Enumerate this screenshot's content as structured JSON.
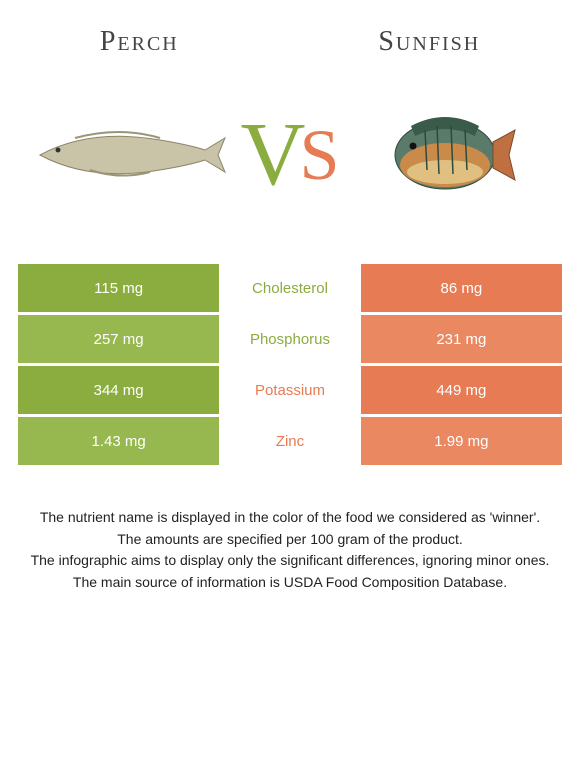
{
  "colors": {
    "left": "#8bad3f",
    "right": "#e77b53",
    "left_alt": "#97b74f",
    "right_alt": "#ea8862"
  },
  "foods": {
    "left": {
      "name": "Perch"
    },
    "right": {
      "name": "Sunfish"
    }
  },
  "vs": {
    "v": "V",
    "s": "S"
  },
  "rows": [
    {
      "label": "Cholesterol",
      "left": "115 mg",
      "right": "86 mg",
      "winner": "left"
    },
    {
      "label": "Phosphorus",
      "left": "257 mg",
      "right": "231 mg",
      "winner": "left"
    },
    {
      "label": "Potassium",
      "left": "344 mg",
      "right": "449 mg",
      "winner": "right"
    },
    {
      "label": "Zinc",
      "left": "1.43 mg",
      "right": "1.99 mg",
      "winner": "right"
    }
  ],
  "footer": {
    "line1": "The nutrient name is displayed in the color of the food we considered as 'winner'.",
    "line2": "The amounts are specified per 100 gram of the product.",
    "line3": "The infographic aims to display only the significant differences, ignoring minor ones.",
    "line4": "The main source of information is USDA Food Composition Database."
  }
}
